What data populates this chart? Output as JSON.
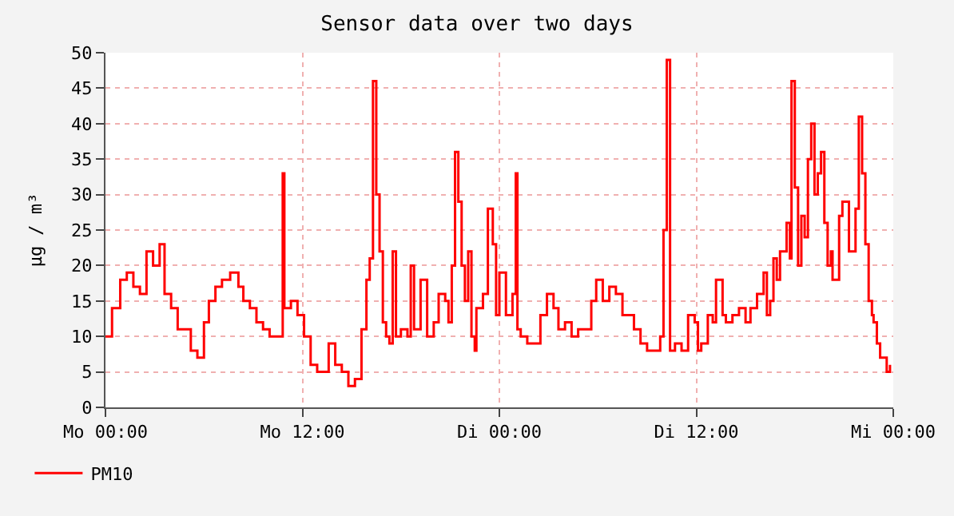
{
  "chart_data": {
    "type": "step",
    "title": "Sensor data over two days",
    "ylabel": "µg / m³",
    "x": [
      "--01-01T00:00",
      "--01-01T00:24",
      "--01-01T00:54",
      "--01-01T01:18",
      "--01-01T01:42",
      "--01-01T02:06",
      "--01-01T02:30",
      "--01-01T02:54",
      "--01-01T03:18",
      "--01-01T03:36",
      "--01-01T04:00",
      "--01-01T04:24",
      "--01-01T04:48",
      "--01-01T05:12",
      "--01-01T05:36",
      "--01-01T06:00",
      "--01-01T06:18",
      "--01-01T06:42",
      "--01-01T07:06",
      "--01-01T07:36",
      "--01-01T08:06",
      "--01-01T08:24",
      "--01-01T08:48",
      "--01-01T09:12",
      "--01-01T09:36",
      "--01-01T10:00",
      "--01-01T10:24",
      "--01-01T10:48",
      "--01-01T10:54",
      "--01-01T11:18",
      "--01-01T11:42",
      "--01-01T12:06",
      "--01-01T12:30",
      "--01-01T12:54",
      "--01-01T13:12",
      "--01-01T13:36",
      "--01-01T14:00",
      "--01-01T14:24",
      "--01-01T14:48",
      "--01-01T15:12",
      "--01-01T15:36",
      "--01-01T15:54",
      "--01-01T16:06",
      "--01-01T16:18",
      "--01-01T16:30",
      "--01-01T16:42",
      "--01-01T16:54",
      "--01-01T17:06",
      "--01-01T17:18",
      "--01-01T17:30",
      "--01-01T17:42",
      "--01-01T18:00",
      "--01-01T18:24",
      "--01-01T18:36",
      "--01-01T18:48",
      "--01-01T19:12",
      "--01-01T19:36",
      "--01-01T20:00",
      "--01-01T20:18",
      "--01-01T20:42",
      "--01-01T20:54",
      "--01-01T21:06",
      "--01-01T21:18",
      "--01-01T21:30",
      "--01-01T21:42",
      "--01-01T21:54",
      "--01-01T22:06",
      "--01-01T22:18",
      "--01-01T22:30",
      "--01-01T22:36",
      "--01-01T23:00",
      "--01-01T23:18",
      "--01-01T23:36",
      "--01-01T23:48",
      "--01-02T00:00",
      "--01-02T00:24",
      "--01-02T00:48",
      "--01-02T01:00",
      "--01-02T01:06",
      "--01-02T01:18",
      "--01-02T01:42",
      "--01-02T02:06",
      "--01-02T02:30",
      "--01-02T02:54",
      "--01-02T03:18",
      "--01-02T03:36",
      "--01-02T04:00",
      "--01-02T04:24",
      "--01-02T04:48",
      "--01-02T05:12",
      "--01-02T05:36",
      "--01-02T05:54",
      "--01-02T06:18",
      "--01-02T06:42",
      "--01-02T07:06",
      "--01-02T07:30",
      "--01-02T07:54",
      "--01-02T08:12",
      "--01-02T08:36",
      "--01-02T09:00",
      "--01-02T09:12",
      "--01-02T09:36",
      "--01-02T09:48",
      "--01-02T10:00",
      "--01-02T10:12",
      "--01-02T10:24",
      "--01-02T10:42",
      "--01-02T11:06",
      "--01-02T11:30",
      "--01-02T11:54",
      "--01-02T12:06",
      "--01-02T12:18",
      "--01-02T12:42",
      "--01-02T13:00",
      "--01-02T13:12",
      "--01-02T13:24",
      "--01-02T13:36",
      "--01-02T13:48",
      "--01-02T14:12",
      "--01-02T14:36",
      "--01-02T15:00",
      "--01-02T15:18",
      "--01-02T15:42",
      "--01-02T16:06",
      "--01-02T16:18",
      "--01-02T16:30",
      "--01-02T16:42",
      "--01-02T16:54",
      "--01-02T17:06",
      "--01-02T17:30",
      "--01-02T17:42",
      "--01-02T17:48",
      "--01-02T18:00",
      "--01-02T18:12",
      "--01-02T18:24",
      "--01-02T18:36",
      "--01-02T18:48",
      "--01-02T19:00",
      "--01-02T19:12",
      "--01-02T19:24",
      "--01-02T19:36",
      "--01-02T19:48",
      "--01-02T20:00",
      "--01-02T20:12",
      "--01-02T20:18",
      "--01-02T20:42",
      "--01-02T20:54",
      "--01-02T21:18",
      "--01-02T21:42",
      "--01-02T21:54",
      "--01-02T22:06",
      "--01-02T22:18",
      "--01-02T22:30",
      "--01-02T22:42",
      "--01-02T22:48",
      "--01-02T23:00",
      "--01-02T23:12",
      "--01-02T23:24",
      "--01-02T23:36",
      "--01-02T23:48"
    ],
    "series": [
      {
        "name": "PM10",
        "color": "#ff0000",
        "values": [
          10,
          14,
          18,
          19,
          17,
          16,
          22,
          20,
          23,
          16,
          14,
          11,
          11,
          8,
          7,
          12,
          15,
          17,
          18,
          19,
          17,
          15,
          14,
          12,
          11,
          10,
          10,
          33,
          14,
          15,
          13,
          10,
          6,
          5,
          5,
          9,
          6,
          5,
          3,
          4,
          11,
          18,
          21,
          46,
          30,
          22,
          12,
          10,
          9,
          22,
          10,
          11,
          10,
          20,
          11,
          18,
          10,
          12,
          16,
          15,
          12,
          20,
          36,
          29,
          20,
          15,
          22,
          10,
          8,
          14,
          16,
          28,
          23,
          13,
          19,
          13,
          16,
          33,
          11,
          10,
          9,
          9,
          13,
          16,
          14,
          11,
          12,
          10,
          11,
          11,
          15,
          18,
          15,
          17,
          16,
          13,
          13,
          11,
          9,
          8,
          8,
          8,
          10,
          25,
          49,
          8,
          9,
          8,
          13,
          12,
          8,
          9,
          13,
          12,
          18,
          18,
          13,
          12,
          13,
          14,
          12,
          14,
          16,
          19,
          13,
          15,
          21,
          18,
          22,
          26,
          21,
          46,
          31,
          20,
          27,
          24,
          35,
          40,
          30,
          33,
          36,
          26,
          20,
          22,
          18,
          27,
          29,
          22,
          28,
          41,
          33,
          23,
          15,
          13,
          12,
          9,
          7,
          7,
          5,
          6
        ]
      }
    ],
    "xlim": [
      "--01-01T00:00",
      "--01-03T00:00"
    ],
    "xticks": [
      {
        "value": "--01-01T00:00",
        "label": "Mo 00:00"
      },
      {
        "value": "--01-01T12:00",
        "label": "Mo 12:00"
      },
      {
        "value": "--01-02T00:00",
        "label": "Di 00:00"
      },
      {
        "value": "--01-02T12:00",
        "label": "Di 12:00"
      },
      {
        "value": "--01-03T00:00",
        "label": "Mi 00:00"
      }
    ],
    "ylim": [
      0,
      50
    ],
    "yticks": [
      0,
      5,
      10,
      15,
      20,
      25,
      30,
      35,
      40,
      45,
      50
    ],
    "grid": true,
    "legend": "bottom left",
    "line_style": "solid"
  }
}
